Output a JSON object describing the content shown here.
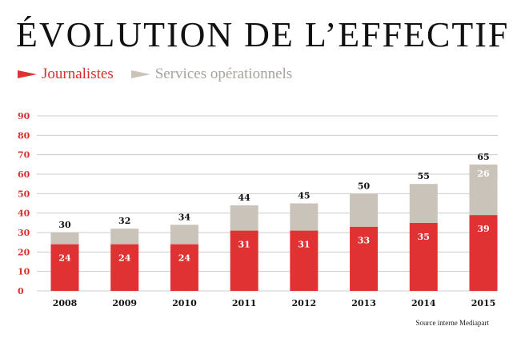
{
  "title": "ÉVOLUTION DE L’EFFECTIF",
  "legend": {
    "journalistes": "Journalistes",
    "services": "Services opérationnels"
  },
  "colors": {
    "journalistes": "#e03232",
    "services": "#c9c3ba",
    "axis_text": "#d9302c",
    "grid": "#cccccc"
  },
  "source": "Source interne Mediapart",
  "chart_data": {
    "type": "bar",
    "stacked": true,
    "title": "ÉVOLUTION DE L’EFFECTIF",
    "categories": [
      "2008",
      "2009",
      "2010",
      "2011",
      "2012",
      "2013",
      "2014",
      "2015"
    ],
    "series": [
      {
        "name": "Journalistes",
        "values": [
          24,
          24,
          24,
          31,
          31,
          33,
          35,
          39
        ]
      },
      {
        "name": "Services opérationnels",
        "values": [
          6,
          8,
          10,
          13,
          14,
          17,
          20,
          26
        ]
      }
    ],
    "totals": [
      30,
      32,
      34,
      44,
      45,
      50,
      55,
      65
    ],
    "yticks": [
      0,
      10,
      20,
      30,
      40,
      50,
      60,
      70,
      80,
      90
    ],
    "ylim": [
      0,
      90
    ],
    "xlabel": "",
    "ylabel": "",
    "grid": true,
    "legend_position": "top-left"
  }
}
